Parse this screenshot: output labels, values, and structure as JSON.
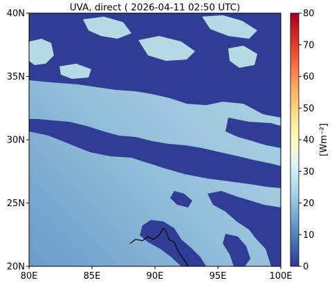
{
  "title": "UVA, direct ( 2026-04-11 02:50 UTC)",
  "map": {
    "x_ticks": [
      {
        "value": 80,
        "label": "80E"
      },
      {
        "value": 85,
        "label": "85E"
      },
      {
        "value": 90,
        "label": "90E"
      },
      {
        "value": 95,
        "label": "95E"
      },
      {
        "value": 100,
        "label": "100E"
      }
    ],
    "y_ticks": [
      {
        "value": 20,
        "label": "20N"
      },
      {
        "value": 25,
        "label": "25N"
      },
      {
        "value": 30,
        "label": "30N"
      },
      {
        "value": 35,
        "label": "35N"
      },
      {
        "value": 40,
        "label": "40N"
      }
    ],
    "lon_range": [
      80,
      100
    ],
    "lat_range": [
      20,
      40
    ]
  },
  "colorbar": {
    "label": "[Wm⁻²]",
    "range": [
      0,
      80
    ],
    "ticks": [
      "0",
      "10",
      "20",
      "30",
      "40",
      "50",
      "60",
      "70",
      "80"
    ],
    "colors": [
      "#313695",
      "#4575b4",
      "#74add1",
      "#abd9e9",
      "#e0f3f8",
      "#ffffbf",
      "#fee090",
      "#fdae61",
      "#f46d43",
      "#d73027",
      "#a50026"
    ]
  },
  "colors": {
    "cloud": "#2f3d94",
    "clear_high": "#b6d9e6",
    "clear_low": "#6a9ac8",
    "coastline": "#000000"
  }
}
